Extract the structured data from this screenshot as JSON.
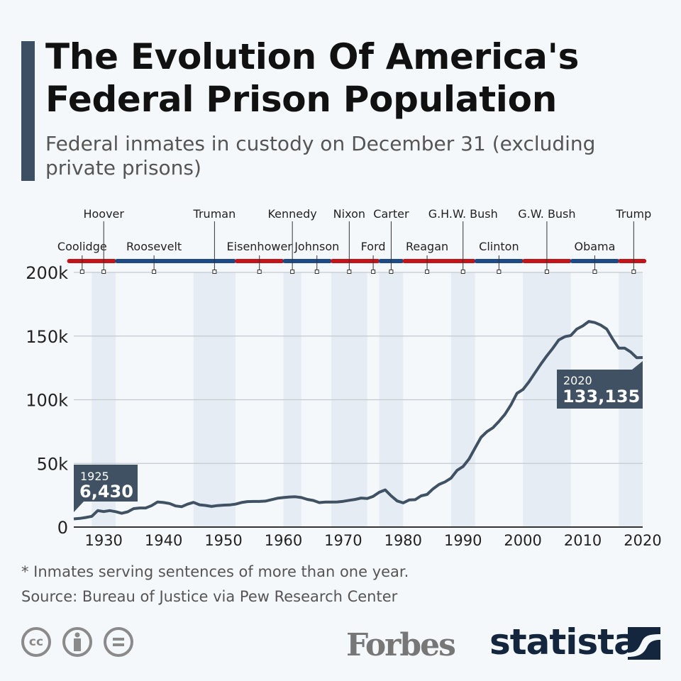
{
  "header": {
    "title": "The Evolution Of America's Federal Prison Population",
    "subtitle": "Federal inmates in custody on December 31 (excluding private prisons)"
  },
  "chart_data": {
    "type": "line",
    "title": "The Evolution Of America's Federal Prison Population",
    "subtitle": "Federal inmates in custody on December 31 (excluding private prisons)",
    "xlim": [
      1925,
      2020
    ],
    "ylim": [
      0,
      200000
    ],
    "yticks": [
      0,
      50000,
      100000,
      150000,
      200000
    ],
    "ytick_labels": [
      "0",
      "50k",
      "100k",
      "150k",
      "200k"
    ],
    "xticks": [
      1930,
      1940,
      1950,
      1960,
      1970,
      1980,
      1990,
      2000,
      2010,
      2020
    ],
    "xtick_labels": [
      "1930",
      "1940",
      "1950",
      "1960",
      "1970",
      "1980",
      "1990",
      "2000",
      "2010",
      "2020"
    ],
    "grid": true,
    "line_color": "#3f5163",
    "x": [
      1925,
      1926,
      1927,
      1928,
      1929,
      1930,
      1931,
      1932,
      1933,
      1934,
      1935,
      1936,
      1937,
      1938,
      1939,
      1940,
      1941,
      1942,
      1943,
      1944,
      1945,
      1946,
      1947,
      1948,
      1949,
      1950,
      1951,
      1952,
      1953,
      1954,
      1955,
      1956,
      1957,
      1958,
      1959,
      1960,
      1961,
      1962,
      1963,
      1964,
      1965,
      1966,
      1967,
      1968,
      1969,
      1970,
      1971,
      1972,
      1973,
      1974,
      1975,
      1976,
      1977,
      1978,
      1979,
      1980,
      1981,
      1982,
      1983,
      1984,
      1985,
      1986,
      1987,
      1988,
      1989,
      1990,
      1991,
      1992,
      1993,
      1994,
      1995,
      1996,
      1997,
      1998,
      1999,
      2000,
      2001,
      2002,
      2003,
      2004,
      2005,
      2006,
      2007,
      2008,
      2009,
      2010,
      2011,
      2012,
      2013,
      2014,
      2015,
      2016,
      2017,
      2018,
      2019,
      2020
    ],
    "values": [
      6430,
      6800,
      7500,
      8400,
      12900,
      12200,
      12900,
      12100,
      10800,
      12000,
      14500,
      15000,
      15000,
      16800,
      19700,
      19300,
      18500,
      16600,
      16000,
      18000,
      19400,
      17500,
      17000,
      16200,
      16900,
      17200,
      17400,
      18000,
      19300,
      20000,
      20100,
      20100,
      20400,
      21500,
      22600,
      23200,
      23600,
      23800,
      23200,
      21700,
      20900,
      19200,
      19600,
      19600,
      19700,
      20200,
      21000,
      21700,
      22800,
      22400,
      24100,
      27300,
      29200,
      24500,
      20500,
      19000,
      21300,
      21500,
      24500,
      25600,
      30000,
      33500,
      35500,
      38500,
      44500,
      47500,
      53500,
      62000,
      70500,
      75000,
      78000,
      83000,
      88500,
      96000,
      105000,
      108000,
      114000,
      121000,
      128000,
      134500,
      140500,
      147000,
      149500,
      150500,
      155500,
      158000,
      161500,
      160600,
      158600,
      155500,
      147500,
      140500,
      140500,
      137500,
      133000,
      133135
    ],
    "annotations": [
      {
        "year": "1925",
        "value": "6,430"
      },
      {
        "year": "2020",
        "value": "133,135"
      }
    ],
    "party_colors": {
      "R": "#c0151b",
      "D": "#1d4a86"
    },
    "shade_color": "#e6ecf3",
    "party_periods": [
      {
        "party": "R",
        "from": 1924,
        "to": 1932
      },
      {
        "party": "D",
        "from": 1932,
        "to": 1952
      },
      {
        "party": "R",
        "from": 1952,
        "to": 1960
      },
      {
        "party": "D",
        "from": 1960,
        "to": 1968
      },
      {
        "party": "R",
        "from": 1968,
        "to": 1976
      },
      {
        "party": "D",
        "from": 1976,
        "to": 1980
      },
      {
        "party": "R",
        "from": 1980,
        "to": 1992
      },
      {
        "party": "D",
        "from": 1992,
        "to": 2000
      },
      {
        "party": "R",
        "from": 2000,
        "to": 2008
      },
      {
        "party": "D",
        "from": 2008,
        "to": 2016
      },
      {
        "party": "R",
        "from": 2016,
        "to": 2020.5
      }
    ],
    "presidents": [
      {
        "name": "Coolidge",
        "mark": 1926.4,
        "row": "low",
        "from": 1924,
        "to": 1928,
        "shaded": false
      },
      {
        "name": "Hoover",
        "mark": 1930,
        "row": "high",
        "from": 1928,
        "to": 1932,
        "shaded": true
      },
      {
        "name": "Roosevelt",
        "mark": 1938.4,
        "row": "low",
        "from": 1932,
        "to": 1945,
        "shaded": false
      },
      {
        "name": "Truman",
        "mark": 1948.5,
        "row": "high",
        "from": 1945,
        "to": 1952,
        "shaded": true
      },
      {
        "name": "Eisenhower",
        "mark": 1956,
        "row": "low",
        "from": 1952,
        "to": 1960,
        "shaded": false
      },
      {
        "name": "Kennedy",
        "mark": 1961.5,
        "row": "high",
        "from": 1960,
        "to": 1963,
        "shaded": true
      },
      {
        "name": "Johnson",
        "mark": 1965.6,
        "row": "low",
        "from": 1963,
        "to": 1968,
        "shaded": false
      },
      {
        "name": "Nixon",
        "mark": 1971,
        "row": "high",
        "from": 1968,
        "to": 1974,
        "shaded": true
      },
      {
        "name": "Ford",
        "mark": 1975,
        "row": "low",
        "from": 1974,
        "to": 1976,
        "shaded": false
      },
      {
        "name": "Carter",
        "mark": 1978,
        "row": "high",
        "from": 1976,
        "to": 1980,
        "shaded": true
      },
      {
        "name": "Reagan",
        "mark": 1984,
        "row": "low",
        "from": 1980,
        "to": 1988,
        "shaded": false
      },
      {
        "name": "G.H.W. Bush",
        "mark": 1990,
        "row": "high",
        "from": 1988,
        "to": 1992,
        "shaded": true
      },
      {
        "name": "Clinton",
        "mark": 1996,
        "row": "low",
        "from": 1992,
        "to": 2000,
        "shaded": false
      },
      {
        "name": "G.W. Bush",
        "mark": 2004,
        "row": "high",
        "from": 2000,
        "to": 2008,
        "shaded": true
      },
      {
        "name": "Obama",
        "mark": 2012,
        "row": "low",
        "from": 2008,
        "to": 2016,
        "shaded": false
      },
      {
        "name": "Trump",
        "mark": 2018.5,
        "row": "high",
        "from": 2016,
        "to": 2020,
        "shaded": true
      }
    ]
  },
  "footer": {
    "note": "* Inmates serving sentences of more than one year.",
    "source": "Source: Bureau of Justice via Pew Research Center",
    "license_icons": [
      "cc-icon",
      "attribution-icon",
      "no-derivatives-icon"
    ],
    "brands": [
      "Forbes",
      "statista"
    ]
  }
}
